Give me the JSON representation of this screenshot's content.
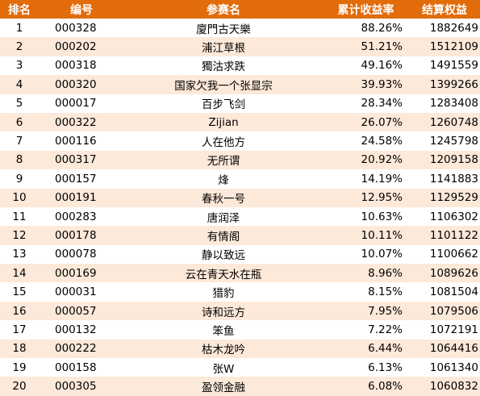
{
  "header": {
    "rank": "排名",
    "code": "编号",
    "name": "参赛名",
    "return": "累计收益率",
    "equity": "结算权益"
  },
  "rows": [
    {
      "rank": "1",
      "code": "000328",
      "name": "廈門古天樂",
      "return": "88.26%",
      "equity": "1882649"
    },
    {
      "rank": "2",
      "code": "000202",
      "name": "浦江草根",
      "return": "51.21%",
      "equity": "1512109"
    },
    {
      "rank": "3",
      "code": "000318",
      "name": "獨沽求跌",
      "return": "49.16%",
      "equity": "1491559"
    },
    {
      "rank": "4",
      "code": "000320",
      "name": "国家欠我一个张显宗",
      "return": "39.93%",
      "equity": "1399266"
    },
    {
      "rank": "5",
      "code": "000017",
      "name": "百步飞剑",
      "return": "28.34%",
      "equity": "1283408"
    },
    {
      "rank": "6",
      "code": "000322",
      "name": "Zijian",
      "return": "26.07%",
      "equity": "1260748"
    },
    {
      "rank": "7",
      "code": "000116",
      "name": "人在他方",
      "return": "24.58%",
      "equity": "1245798"
    },
    {
      "rank": "8",
      "code": "000317",
      "name": "无所谓",
      "return": "20.92%",
      "equity": "1209158"
    },
    {
      "rank": "9",
      "code": "000157",
      "name": "烽",
      "return": "14.19%",
      "equity": "1141883"
    },
    {
      "rank": "10",
      "code": "000191",
      "name": "春秋一号",
      "return": "12.95%",
      "equity": "1129529"
    },
    {
      "rank": "11",
      "code": "000283",
      "name": "唐润泽",
      "return": "10.63%",
      "equity": "1106302"
    },
    {
      "rank": "12",
      "code": "000178",
      "name": "有情阁",
      "return": "10.11%",
      "equity": "1101122"
    },
    {
      "rank": "13",
      "code": "000078",
      "name": "静以致远",
      "return": "10.07%",
      "equity": "1100662"
    },
    {
      "rank": "14",
      "code": "000169",
      "name": "云在青天水在瓶",
      "return": "8.96%",
      "equity": "1089626"
    },
    {
      "rank": "15",
      "code": "000031",
      "name": "猎豹",
      "return": "8.15%",
      "equity": "1081504"
    },
    {
      "rank": "16",
      "code": "000057",
      "name": "诗和远方",
      "return": "7.95%",
      "equity": "1079506"
    },
    {
      "rank": "17",
      "code": "000132",
      "name": "笨鱼",
      "return": "7.22%",
      "equity": "1072191"
    },
    {
      "rank": "18",
      "code": "000222",
      "name": "枯木龙吟",
      "return": "6.44%",
      "equity": "1064416"
    },
    {
      "rank": "19",
      "code": "000158",
      "name": "张W",
      "return": "6.13%",
      "equity": "1061340"
    },
    {
      "rank": "20",
      "code": "000305",
      "name": "盈领金融",
      "return": "6.08%",
      "equity": "1060832"
    }
  ],
  "colors": {
    "header_bg": "#e26b0a",
    "header_text": "#ffffff",
    "row_alt_bg": "#fde9d9",
    "row_bg": "#ffffff"
  }
}
